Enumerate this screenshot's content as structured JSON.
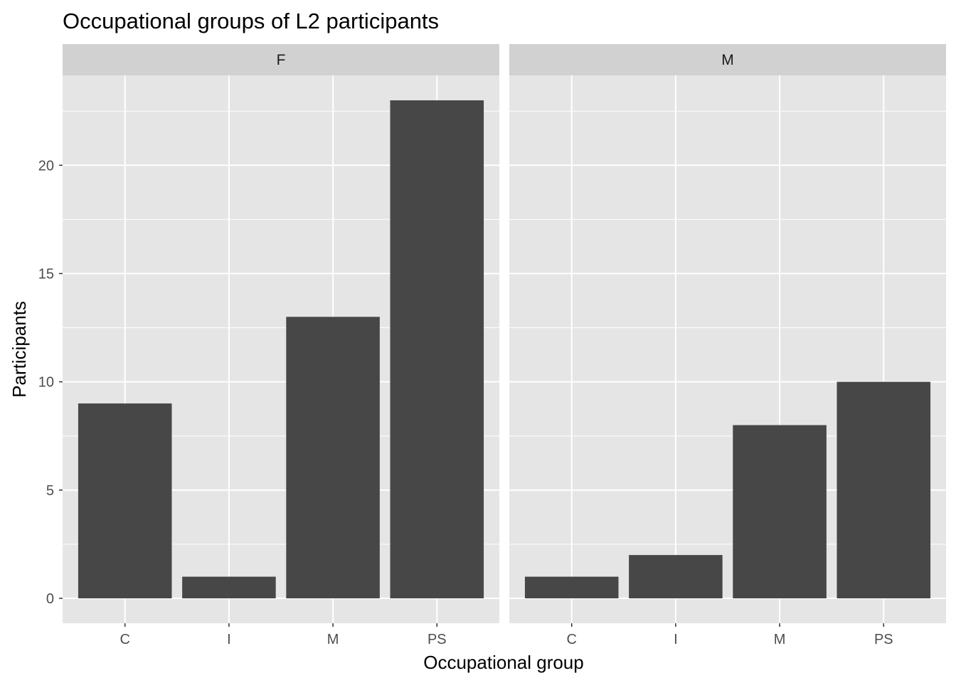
{
  "colors": {
    "panel_background": "#e5e5e5",
    "grid_line": "#ffffff",
    "strip_background": "#d1d1d1",
    "bar_fill": "#474747",
    "tick_color": "#333333"
  },
  "chart_data": {
    "type": "bar",
    "title": "Occupational groups of L2 participants",
    "xlabel": "Occupational group",
    "ylabel": "Participants",
    "categories": [
      "C",
      "I",
      "M",
      "PS"
    ],
    "y_ticks": [
      0,
      5,
      10,
      15,
      20
    ],
    "ylim": [
      -1.15,
      24.15
    ],
    "grid": true,
    "facets": [
      {
        "name": "F",
        "values": [
          9,
          1,
          13,
          23
        ]
      },
      {
        "name": "M",
        "values": [
          1,
          2,
          8,
          10
        ]
      }
    ]
  }
}
